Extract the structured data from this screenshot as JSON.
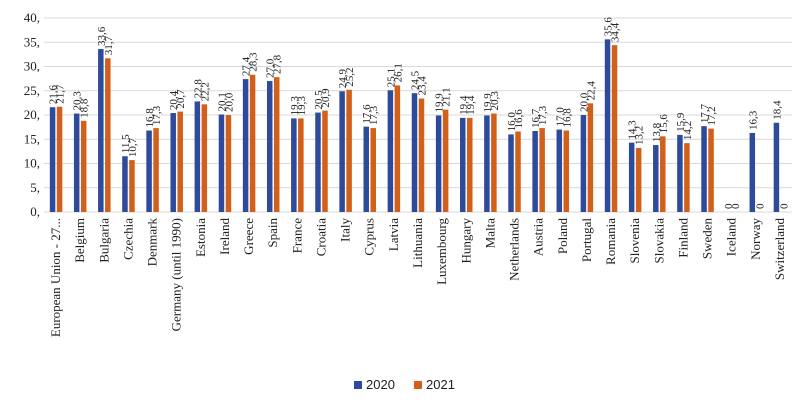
{
  "chart_data": {
    "type": "bar",
    "title": "",
    "xlabel": "",
    "ylabel": "",
    "ylim": [
      0,
      40
    ],
    "ytick_step": 5,
    "ytick_suffix": ",",
    "grid": true,
    "legend_position": "bottom",
    "categories": [
      "European Union - 27...",
      "Belgium",
      "Bulgaria",
      "Czechia",
      "Denmark",
      "Germany (until 1990)",
      "Estonia",
      "Ireland",
      "Greece",
      "Spain",
      "France",
      "Croatia",
      "Italy",
      "Cyprus",
      "Latvia",
      "Lithuania",
      "Luxembourg",
      "Hungary",
      "Malta",
      "Netherlands",
      "Austria",
      "Poland",
      "Portugal",
      "Romania",
      "Slovenia",
      "Slovakia",
      "Finland",
      "Sweden",
      "Iceland",
      "Norway",
      "Switzerland"
    ],
    "series": [
      {
        "name": "2020",
        "color": "#2e4b9b",
        "values": [
          21.6,
          20.3,
          33.6,
          11.5,
          16.8,
          20.4,
          22.8,
          20.1,
          27.4,
          27.0,
          19.3,
          20.5,
          24.9,
          17.6,
          25.1,
          24.5,
          19.9,
          19.4,
          19.9,
          16.0,
          16.7,
          17.0,
          20.0,
          35.6,
          14.3,
          13.8,
          15.9,
          17.7,
          0,
          16.3,
          18.4
        ],
        "labels": [
          "21,6",
          "20,3",
          "33,6",
          "11,5",
          "16,8",
          "20,4",
          "22,8",
          "20,1",
          "27,4",
          "27,0",
          "19,3",
          "20,5",
          "24,9",
          "17,6",
          "25,1",
          "24,5",
          "19,9",
          "19,4",
          "19,9",
          "16,0",
          "16,7",
          "17,0",
          "20,0",
          "35,6",
          "14,3",
          "13,8",
          "15,9",
          "17,7",
          "0",
          "16,3",
          "18,4"
        ]
      },
      {
        "name": "2021",
        "color": "#d2601a",
        "values": [
          21.7,
          18.8,
          31.7,
          10.7,
          17.3,
          20.7,
          22.2,
          20.0,
          28.3,
          27.8,
          19.3,
          20.9,
          25.2,
          17.3,
          26.1,
          23.4,
          21.1,
          19.4,
          20.3,
          16.6,
          17.3,
          16.8,
          22.4,
          34.4,
          13.2,
          15.6,
          14.2,
          17.2,
          0,
          0,
          0
        ],
        "labels": [
          "21,7",
          "18,8",
          "31,7",
          "10,7",
          "17,3",
          "20,7",
          "22,2",
          "20,0",
          "28,3",
          "27,8",
          "19,3",
          "20,9",
          "25,2",
          "17,3",
          "26,1",
          "23,4",
          "21,1",
          "19,4",
          "20,3",
          "16,6",
          "17,3",
          "16,8",
          "22,4",
          "34,4",
          "13,2",
          "15,6",
          "14,2",
          "17,2",
          "0",
          "0",
          "0"
        ]
      }
    ]
  }
}
